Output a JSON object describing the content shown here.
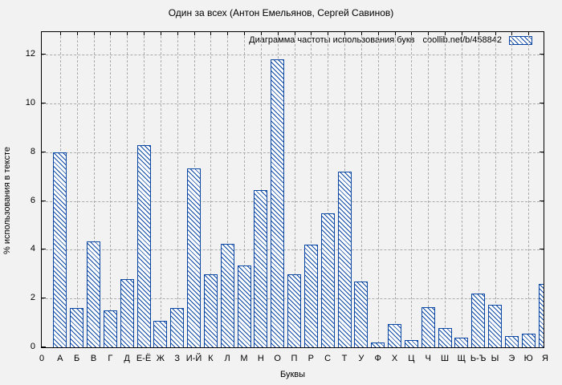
{
  "title": "Один за всех (Антон Емельянов, Сергей Савинов)",
  "legend": {
    "label": "Диаграмма частоты использования букв",
    "source": "coollib.net/b/458842",
    "swatch_icon": "hatched-bar-swatch"
  },
  "axes": {
    "x_label": "Буквы",
    "y_label": "% использования в тексте",
    "y_ticks": [
      0,
      2,
      4,
      6,
      8,
      10,
      12
    ],
    "x_origin_label": "0"
  },
  "colors": {
    "bar_outline": "#0a46a4",
    "bar_fill": "#ffffff",
    "grid": "#ababab",
    "axis": "#000000",
    "background": "#f2f2f2"
  },
  "chart_data": {
    "type": "bar",
    "title": "Один за всех (Антон Емельянов, Сергей Савинов)",
    "xlabel": "Буквы",
    "ylabel": "% использования в тексте",
    "categories": [
      "А",
      "Б",
      "В",
      "Г",
      "Д",
      "Е-Ё",
      "Ж",
      "З",
      "И-Й",
      "К",
      "Л",
      "М",
      "Н",
      "О",
      "П",
      "Р",
      "С",
      "Т",
      "У",
      "Ф",
      "Х",
      "Ц",
      "Ч",
      "Ш",
      "Щ",
      "Ь-Ъ",
      "Ы",
      "Э",
      "Ю",
      "Я"
    ],
    "values": [
      8.0,
      1.6,
      4.35,
      1.5,
      2.8,
      8.3,
      1.1,
      1.6,
      7.35,
      3.0,
      4.25,
      3.35,
      6.45,
      11.8,
      3.0,
      4.2,
      5.5,
      7.2,
      2.7,
      0.2,
      0.95,
      0.3,
      1.65,
      0.8,
      0.4,
      2.2,
      1.75,
      0.45,
      0.55,
      2.6
    ],
    "ylim": [
      0,
      13
    ],
    "y_tick_step": 2,
    "grid": true,
    "legend_entry": "Диаграмма частоты использования букв  coollib.net/b/458842",
    "legend_position": "top-right",
    "bar_style": "blue outline, white fill, diagonal hatch"
  }
}
